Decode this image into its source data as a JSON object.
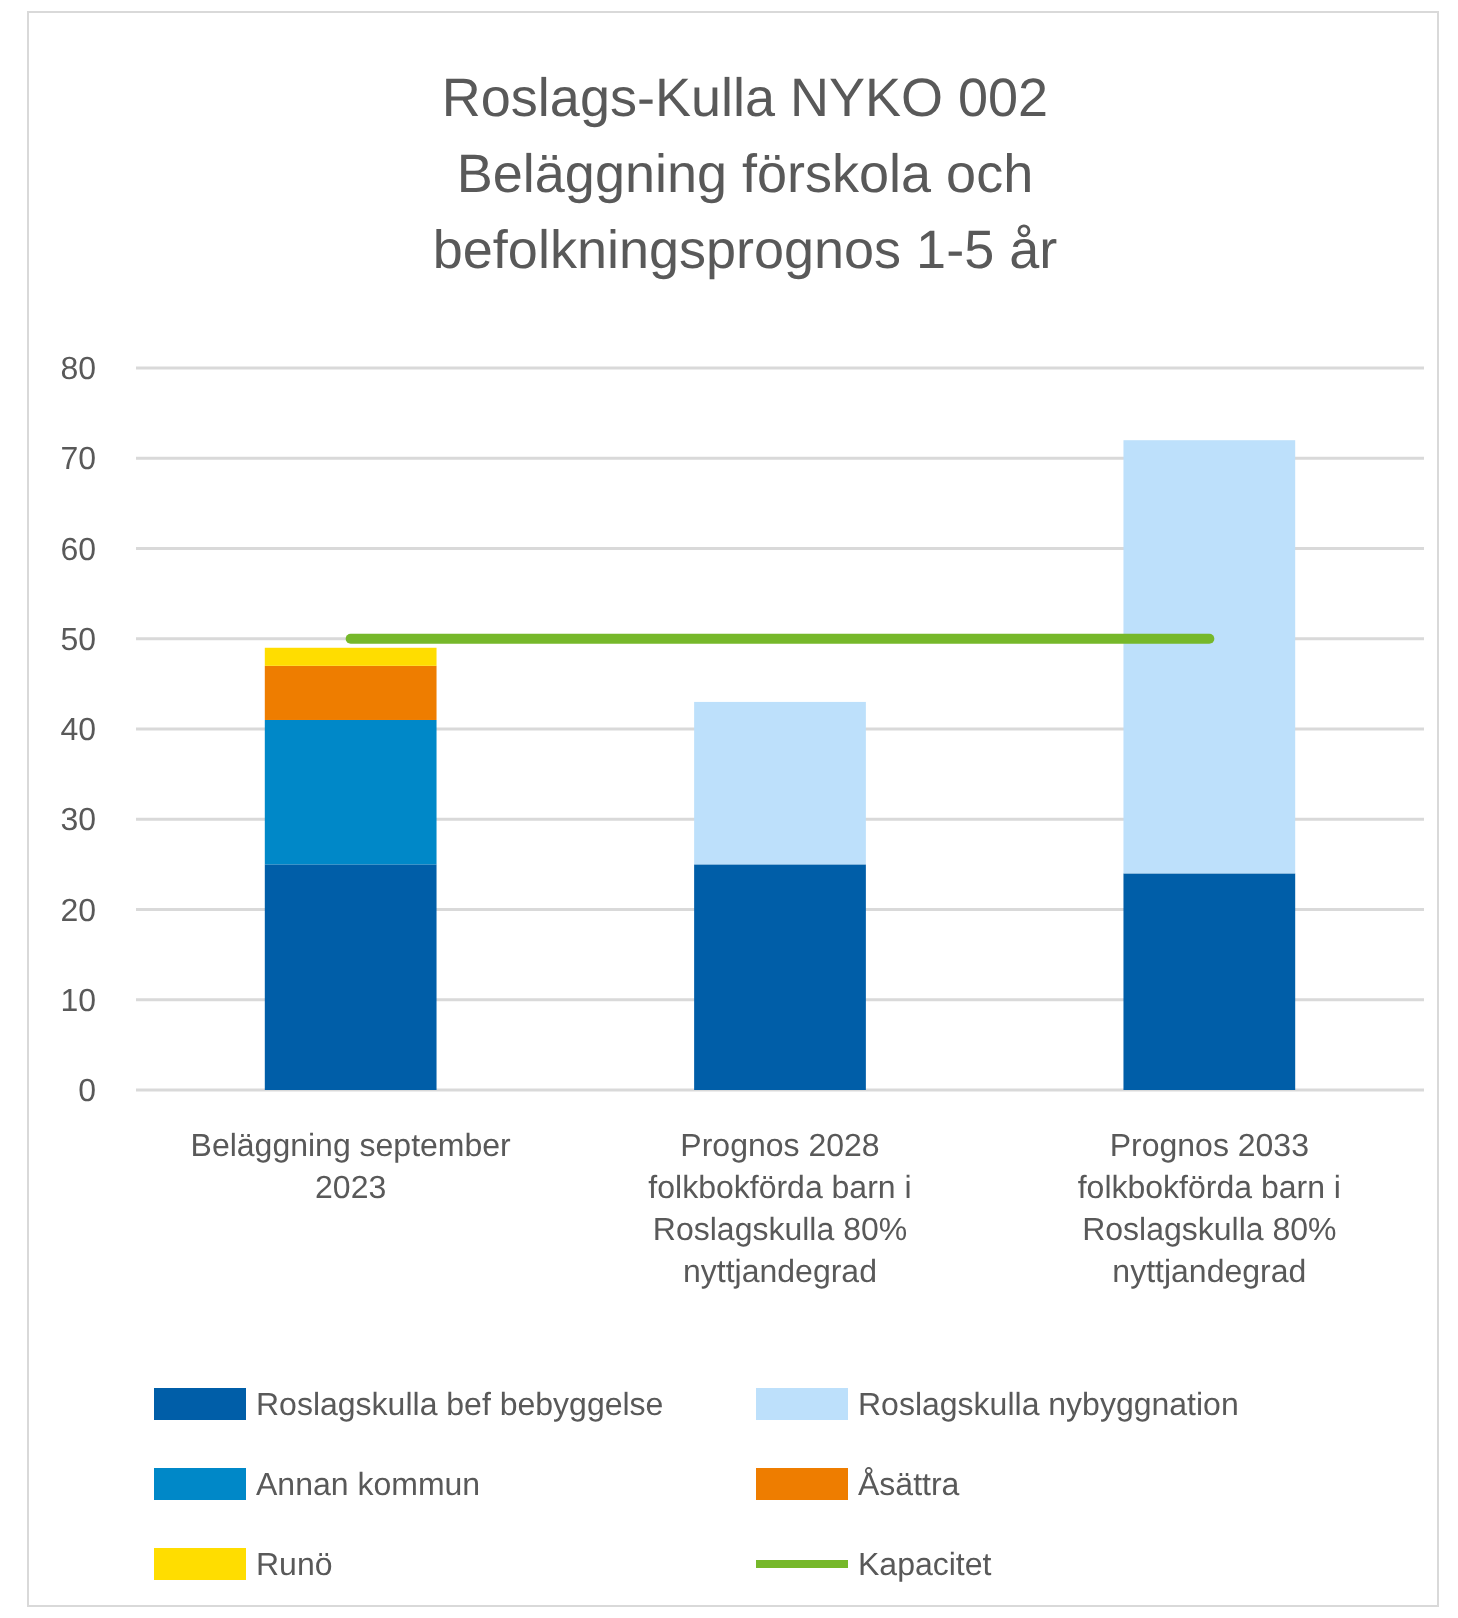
{
  "chart_data": {
    "type": "bar",
    "title": "Roslags-Kulla NYKO 002 Beläggning förskola och befolkningsprognos 1-5 år",
    "categories": [
      "Beläggning september 2023",
      "Prognos 2028 folkbokförda barn i Roslagskulla 80% nyttjandegrad",
      "Prognos 2033 folkbokförda barn i Roslagskulla 80% nyttjandegrad"
    ],
    "stacked": true,
    "ylim": [
      0,
      80
    ],
    "yticks": [
      0,
      10,
      20,
      30,
      40,
      50,
      60,
      70,
      80
    ],
    "grid": "y",
    "legend": "bottom",
    "series": [
      {
        "name": "Roslagskulla bef bebyggelse",
        "color": "#005ea8",
        "values": [
          25,
          25,
          24
        ]
      },
      {
        "name": "Roslagskulla nybyggnation",
        "color": "#bde0fb",
        "values": [
          null,
          18,
          48
        ]
      },
      {
        "name": "Annan kommun",
        "color": "#0088c8",
        "values": [
          16,
          null,
          null
        ]
      },
      {
        "name": "Åsättra",
        "color": "#ee7d00",
        "values": [
          6,
          null,
          null
        ]
      },
      {
        "name": "Runö",
        "color": "#ffdd00",
        "values": [
          2,
          null,
          null
        ]
      },
      {
        "name": "Kapacitet",
        "type": "line",
        "color": "#76b82a",
        "values": [
          50,
          50,
          50
        ]
      }
    ]
  }
}
